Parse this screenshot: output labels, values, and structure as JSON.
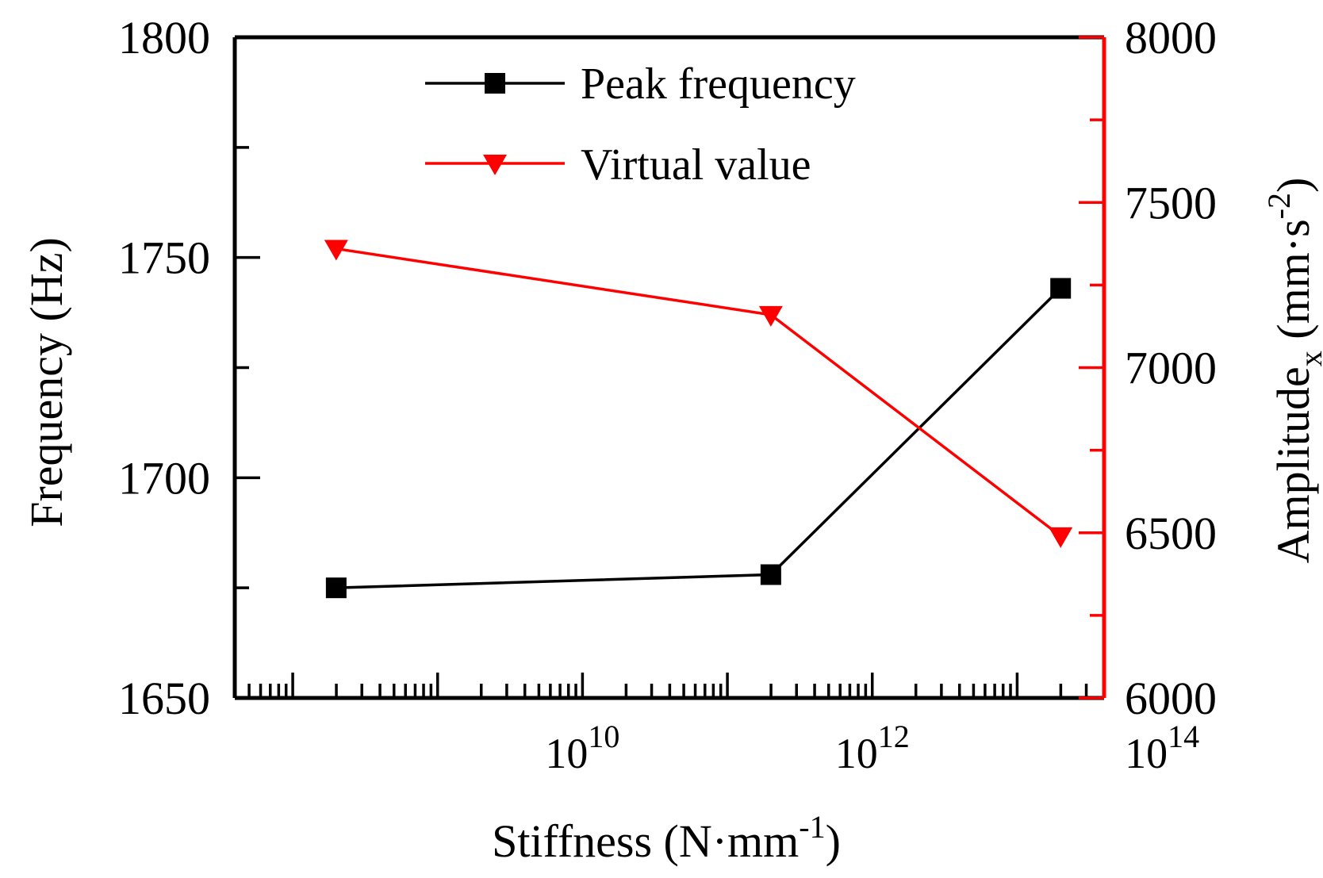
{
  "chart_data": {
    "type": "line",
    "title": "",
    "xlabel": "Stiffness (N·mm",
    "xlabel_sup": "-1",
    "xlabel_close": ")",
    "x_scale": "log10",
    "xlim_exp": [
      7.6,
      13.6
    ],
    "x_ticks": [
      {
        "base": "10",
        "exp": "10",
        "value_exp": 10
      },
      {
        "base": "10",
        "exp": "12",
        "value_exp": 12
      },
      {
        "base": "10",
        "exp": "14",
        "value_exp": 14
      }
    ],
    "y_left": {
      "label": "Frequency (Hz)",
      "ylim": [
        1650,
        1800
      ],
      "ticks": [
        "1650",
        "1700",
        "1750",
        "1800"
      ],
      "minor_step": 25,
      "color": "#000000"
    },
    "y_right": {
      "label_main": "Amplitude",
      "label_sub": "x",
      "label_units": " (mm·s",
      "label_sup": "-2",
      "label_close": ")",
      "ylim": [
        6000,
        8000
      ],
      "ticks": [
        "6000",
        "6500",
        "7000",
        "7500",
        "8000"
      ],
      "minor_step": 250,
      "color": "#ff0000"
    },
    "series": [
      {
        "name": "Peak frequency",
        "axis": "left",
        "color": "#000000",
        "marker": "square",
        "x_exp": [
          8.3,
          11.3,
          13.3
        ],
        "values": [
          1675,
          1678,
          1743
        ]
      },
      {
        "name": "Virtual value",
        "axis": "right",
        "color": "#ff0000",
        "marker": "triangle-down",
        "x_exp": [
          8.3,
          11.3,
          13.3
        ],
        "values": [
          7360,
          7160,
          6490
        ]
      }
    ],
    "legend_position": "top-center",
    "grid": false
  }
}
